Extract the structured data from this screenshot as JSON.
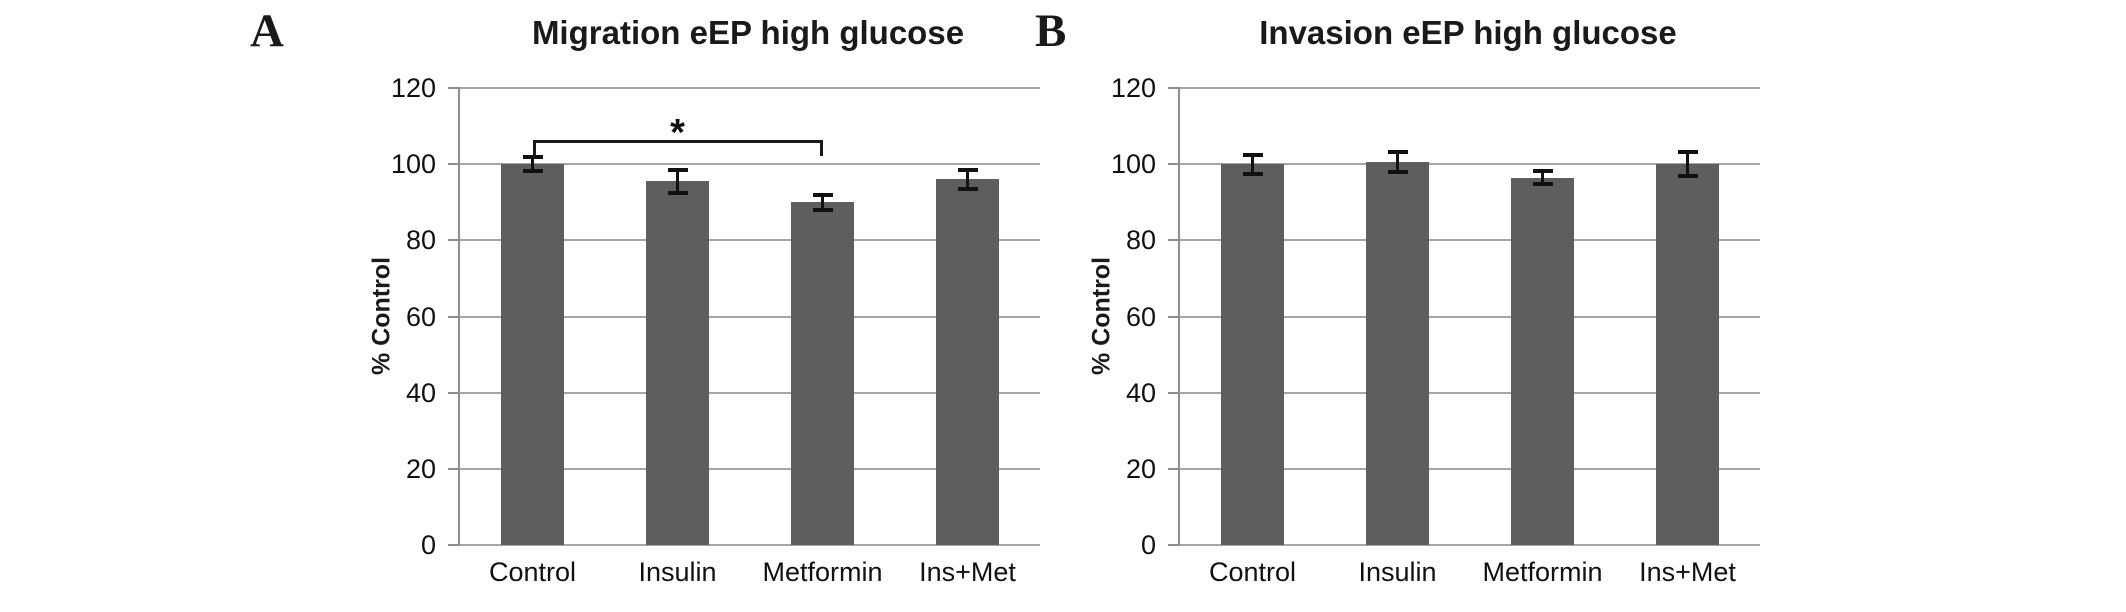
{
  "figure": {
    "background": "#ffffff",
    "bar_color": "#5e5e5e",
    "grid_color": "#a6a6a6",
    "axis_color": "#8e8e8e",
    "error_bar_color": "#111111",
    "text_color": "#1a1a1a"
  },
  "chart_data": [
    {
      "type": "bar",
      "panel_label": "A",
      "title": "Migration eEP high glucose",
      "xlabel": "",
      "ylabel": "% Control",
      "categories": [
        "Control",
        "Insulin",
        "Metformin",
        "Ins+Met"
      ],
      "values": [
        100,
        95.5,
        90,
        96
      ],
      "errors": [
        1.8,
        3.0,
        2.0,
        2.5
      ],
      "ylim": [
        0,
        120
      ],
      "yticks": [
        0,
        20,
        40,
        60,
        80,
        100,
        120
      ],
      "grid": true,
      "legend": false,
      "annotations": [
        {
          "kind": "significance-bracket",
          "from_category": "Control",
          "to_category": "Metformin",
          "label": "*",
          "bracket_y": 106.3
        }
      ]
    },
    {
      "type": "bar",
      "panel_label": "B",
      "title": "Invasion eEP high glucose",
      "xlabel": "",
      "ylabel": "% Control",
      "categories": [
        "Control",
        "Insulin",
        "Metformin",
        "Ins+Met"
      ],
      "values": [
        100,
        100.5,
        96.5,
        100
      ],
      "errors": [
        2.5,
        2.6,
        1.8,
        3.2
      ],
      "ylim": [
        0,
        120
      ],
      "yticks": [
        0,
        20,
        40,
        60,
        80,
        100,
        120
      ],
      "grid": true,
      "legend": false,
      "annotations": []
    }
  ]
}
